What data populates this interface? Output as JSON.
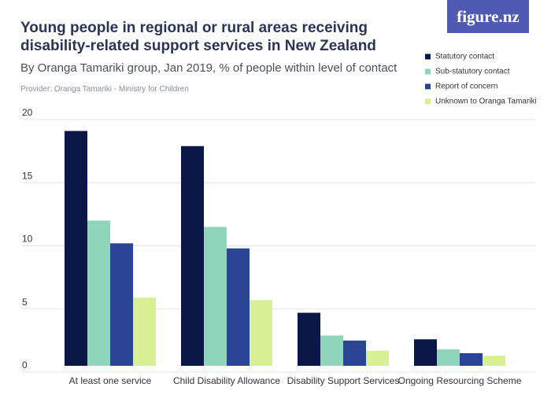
{
  "logo": "figure.nz",
  "chart_data": {
    "type": "bar",
    "title": "Young people in regional or rural areas receiving disability-related support services in New Zealand",
    "subtitle": "By Oranga Tamariki group, Jan 2019, % of people within level of contact",
    "provider": "Provider: Oranga Tamariki - Ministry for Children",
    "categories": [
      "At least one service",
      "Child Disability Allowance",
      "Disability Support Services",
      "Ongoing Resourcing Scheme"
    ],
    "series": [
      {
        "name": "Statutory contact",
        "color": "#0b1747",
        "values": [
          18.6,
          17.4,
          4.2,
          2.1
        ]
      },
      {
        "name": "Sub-statutory contact",
        "color": "#8fd5b9",
        "values": [
          11.5,
          11.0,
          2.4,
          1.3
        ]
      },
      {
        "name": "Report of concern",
        "color": "#2b4596",
        "values": [
          9.7,
          9.3,
          2.0,
          1.0
        ]
      },
      {
        "name": "Unknown to Oranga Tamariki",
        "color": "#d6f093",
        "values": [
          5.4,
          5.2,
          1.2,
          0.8
        ]
      }
    ],
    "ylim": [
      0,
      20
    ],
    "yticks": [
      0,
      5,
      10,
      15,
      20
    ],
    "grid": true
  }
}
